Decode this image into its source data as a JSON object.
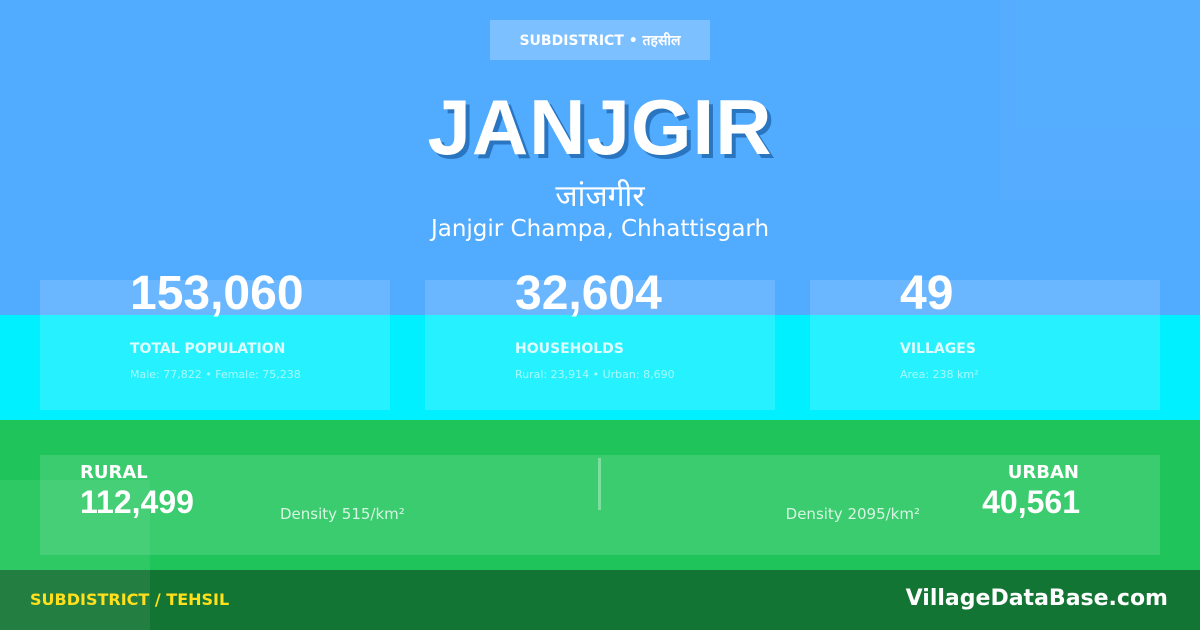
{
  "colors": {
    "header_bg": "#51abff",
    "stats_bg": "#00f0ff",
    "split_bg": "#1fc55a",
    "footer_bg": "#137533",
    "footer_label": "#ffe01a"
  },
  "badge": "SUBDISTRICT • तहसील",
  "title": "JANJGIR",
  "title_hindi": "जांजगीर",
  "location": "Janjgir Champa, Chhattisgarh",
  "stats": [
    {
      "value": "153,060",
      "label": "TOTAL POPULATION",
      "sub": "Male: 77,822 • Female: 75,238"
    },
    {
      "value": "32,604",
      "label": "HOUSEHOLDS",
      "sub": "Rural: 23,914 • Urban: 8,690"
    },
    {
      "value": "49",
      "label": "VILLAGES",
      "sub": "Area: 238 km²"
    }
  ],
  "rural": {
    "label": "RURAL",
    "value": "112,499",
    "density": "Density 515/km²"
  },
  "urban": {
    "label": "URBAN",
    "value": "40,561",
    "density": "Density 2095/km²"
  },
  "footer": {
    "label": "SUBDISTRICT / TEHSIL",
    "site": "VillageDataBase.com"
  }
}
